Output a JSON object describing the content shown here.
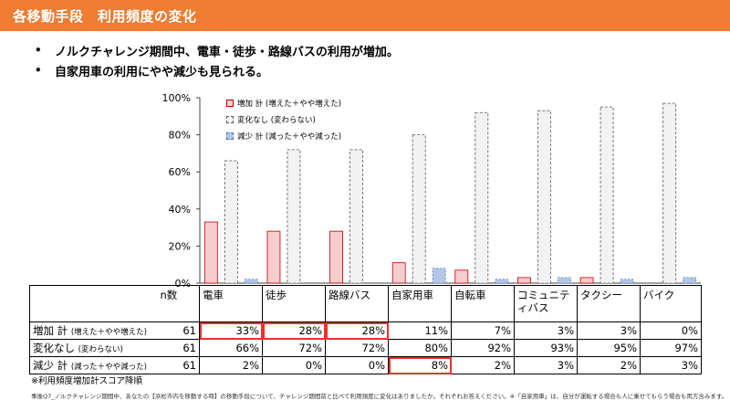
{
  "header": {
    "title": "各移動手段　利用頻度の変化",
    "bar_color": "#ee7d31"
  },
  "bullets": [
    "ノルクチャレンジ期間中、電車・徒歩・路線バスの利用が増加。",
    "自家用車の利用にやや減少も見られる。"
  ],
  "chart_data": {
    "type": "bar",
    "categories": [
      "電車",
      "徒歩",
      "路線バス",
      "自家用車",
      "自転車",
      "コミュニティバス",
      "タクシー",
      "バイク"
    ],
    "series": [
      {
        "name": "増加 計 (増えた＋やや増えた)",
        "values": [
          33,
          28,
          28,
          11,
          7,
          3,
          3,
          0
        ],
        "color": "#f7cccc"
      },
      {
        "name": "変化なし (変わらない)",
        "values": [
          66,
          72,
          72,
          80,
          92,
          93,
          95,
          97
        ],
        "color": "#f2f2f2"
      },
      {
        "name": "減少 計 (減った＋やや減った)",
        "values": [
          2,
          0,
          0,
          8,
          2,
          3,
          2,
          3
        ],
        "color": "#b4c7e7"
      }
    ],
    "ylim": [
      0,
      100
    ],
    "yticks": [
      "0%",
      "20%",
      "40%",
      "60%",
      "80%",
      "100%"
    ],
    "legend_position": "top-left"
  },
  "table": {
    "n_header": "n数",
    "categories": [
      "電車",
      "徒歩",
      "路線バス",
      "自家用車",
      "自転車",
      "コミュニティバス",
      "タクシー",
      "バイク"
    ],
    "rows": [
      {
        "label": "増加 計",
        "sublabel": "(増えた＋やや増えた)",
        "n": "61",
        "values": [
          "33%",
          "28%",
          "28%",
          "11%",
          "7%",
          "3%",
          "3%",
          "0%"
        ]
      },
      {
        "label": "変化なし",
        "sublabel": "(変わらない)",
        "n": "61",
        "values": [
          "66%",
          "72%",
          "72%",
          "80%",
          "92%",
          "93%",
          "95%",
          "97%"
        ]
      },
      {
        "label": "減少 計",
        "sublabel": "(減った＋やや減った)",
        "n": "61",
        "values": [
          "2%",
          "0%",
          "0%",
          "8%",
          "2%",
          "3%",
          "2%",
          "3%"
        ]
      }
    ],
    "highlight_color": "#e8322b"
  },
  "notes": {
    "sort_note": "※利用頻度増加計スコア降順",
    "question": "事後Q7_ノルクチャレンジ期間中、あなたの【浜松市内を移動する時】の移動手段について、チャレンジ期間前と比べて利用頻度に変化はありましたか。それぞれお答えください。※「自家用車」は、自分が運転する場合も人に乗せてもらう場合も両方含みます。"
  }
}
